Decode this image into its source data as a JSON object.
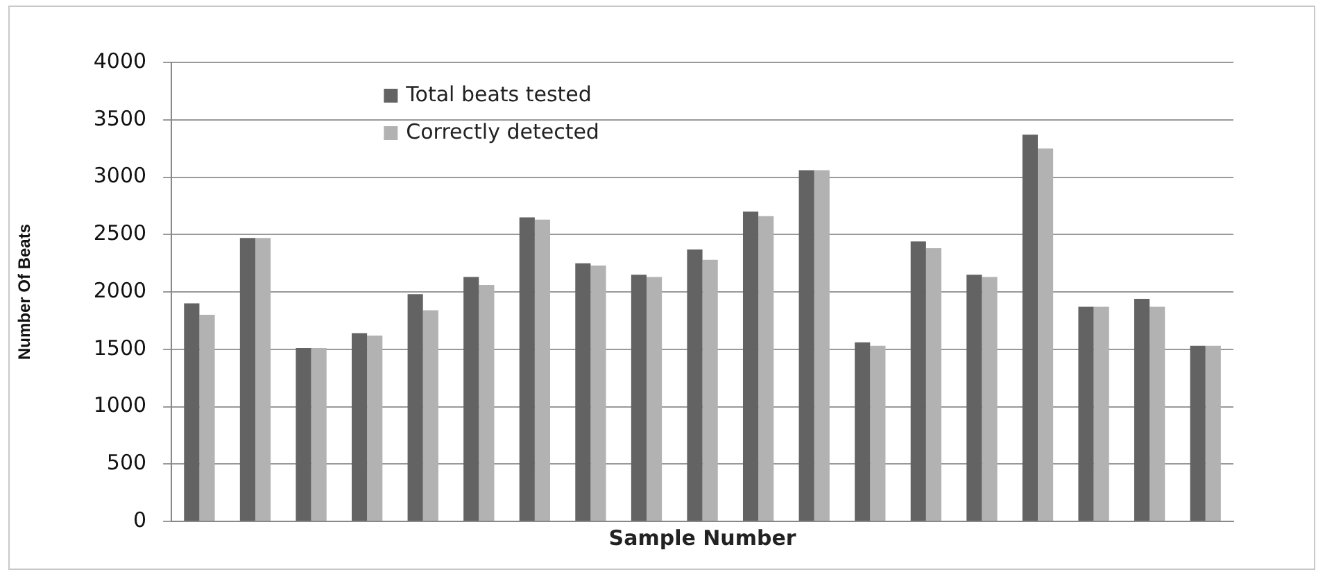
{
  "chart_data": {
    "type": "bar",
    "xlabel": "Sample Number",
    "ylabel": "Number Of Beats",
    "categories": [
      null,
      null,
      null,
      null,
      null,
      null,
      null,
      null,
      null,
      null,
      null,
      null,
      null,
      null,
      null,
      null,
      null,
      null,
      null
    ],
    "series": [
      {
        "name": "Total beats tested",
        "color": "#636363",
        "values": [
          1900,
          2470,
          1510,
          1640,
          1980,
          2130,
          2650,
          2250,
          2150,
          2370,
          2700,
          3060,
          1560,
          2440,
          2150,
          3370,
          1870,
          1940,
          1530
        ]
      },
      {
        "name": "Correctly detected",
        "color": "#b2b2b2",
        "values": [
          1800,
          2470,
          1510,
          1620,
          1840,
          2060,
          2630,
          2230,
          2130,
          2280,
          2660,
          3060,
          1530,
          2380,
          2130,
          3250,
          1870,
          1870,
          1530
        ]
      }
    ],
    "ylim": [
      0,
      4000
    ],
    "yticks": [
      0,
      500,
      1000,
      1500,
      2000,
      2500,
      3000,
      3500,
      4000
    ],
    "grid": "y",
    "legend": "top left"
  }
}
